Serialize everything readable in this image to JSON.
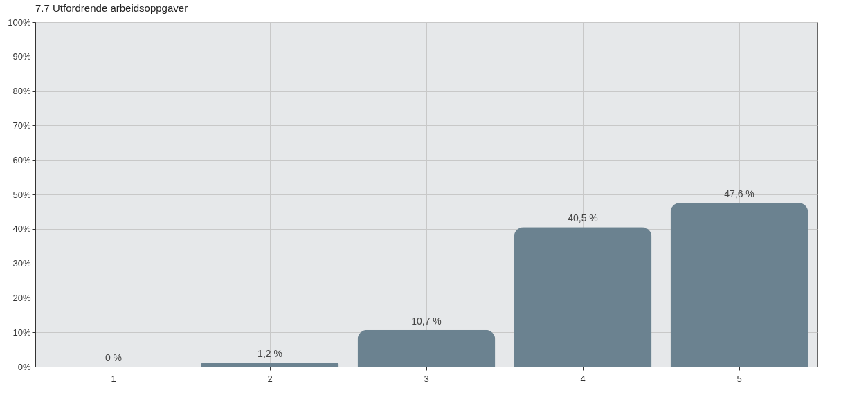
{
  "chart_data": {
    "type": "bar",
    "title": "7.7 Utfordrende arbeidsoppgaver",
    "categories": [
      "1",
      "2",
      "3",
      "4",
      "5"
    ],
    "values": [
      0,
      1.2,
      10.7,
      40.5,
      47.6
    ],
    "value_labels": [
      "0 %",
      "1,2 %",
      "10,7 %",
      "40,5 %",
      "47,6 %"
    ],
    "color": "#6b8290",
    "ylim": [
      0,
      100
    ],
    "yticks": [
      {
        "value": 0,
        "label": "0%"
      },
      {
        "value": 10,
        "label": "10%"
      },
      {
        "value": 20,
        "label": "20%"
      },
      {
        "value": 30,
        "label": "30%"
      },
      {
        "value": 40,
        "label": "40%"
      },
      {
        "value": 50,
        "label": "50%"
      },
      {
        "value": 60,
        "label": "60%"
      },
      {
        "value": 70,
        "label": "70%"
      },
      {
        "value": 80,
        "label": "80%"
      },
      {
        "value": 90,
        "label": "90%"
      },
      {
        "value": 100,
        "label": "100%"
      }
    ],
    "grid": true
  }
}
